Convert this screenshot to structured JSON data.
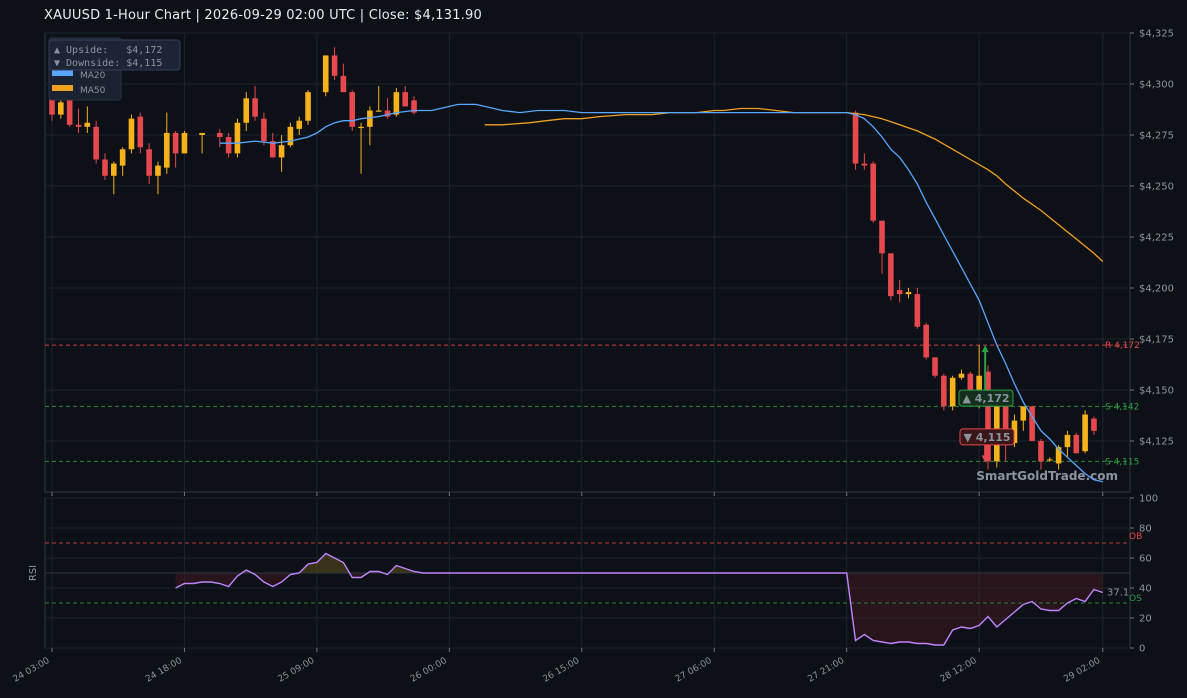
{
  "title": "XAUUSD  1-Hour Chart  |  2026-09-29 02:00 UTC  |  Close: $4,131.90",
  "colors": {
    "background": "#0d1117",
    "up": "#f5b21b",
    "down": "#e5484d",
    "ma20": "#58a6ff",
    "ma50": "#f0a020",
    "resistance": "#e5484d",
    "support": "#2ea043",
    "rsi": "#c084fc"
  },
  "chart_data": [
    {
      "type": "candlestick",
      "title": "XAUUSD  1-Hour Chart",
      "ylim": [
        4100,
        4325
      ],
      "y_ticks": [
        4125,
        4150,
        4175,
        4200,
        4225,
        4250,
        4275,
        4300,
        4325
      ],
      "y_tick_labels": [
        "$4,125",
        "$4,150",
        "$4,175",
        "$4,200",
        "$4,225",
        "$4,250",
        "$4,275",
        "$4,300",
        "$4,325"
      ],
      "x_tick_labels": [
        "24 03:00",
        "24 18:00",
        "25 09:00",
        "26 00:00",
        "26 15:00",
        "27 06:00",
        "27 21:00",
        "28 12:00",
        "29 02:00"
      ],
      "x_tick_index": [
        0,
        15,
        30,
        45,
        60,
        75,
        90,
        105,
        119
      ],
      "legend": {
        "placement": "top-left",
        "entries": [
          {
            "name": "MA20",
            "color": "#58a6ff"
          },
          {
            "name": "MA50",
            "color": "#f0a020"
          }
        ]
      },
      "grid": true,
      "watermark": "SmartGoldTrade.com",
      "candles": [
        {
          "i": 0,
          "o": 4293,
          "h": 4296,
          "l": 4282,
          "c": 4285
        },
        {
          "i": 1,
          "o": 4285,
          "h": 4292,
          "l": 4283,
          "c": 4291
        },
        {
          "i": 2,
          "o": 4292,
          "h": 4294,
          "l": 4279,
          "c": 4280
        },
        {
          "i": 3,
          "o": 4280,
          "h": 4288,
          "l": 4276,
          "c": 4279
        },
        {
          "i": 4,
          "o": 4279,
          "h": 4289,
          "l": 4276,
          "c": 4281
        },
        {
          "i": 5,
          "o": 4279,
          "h": 4282,
          "l": 4261,
          "c": 4263
        },
        {
          "i": 6,
          "o": 4263,
          "h": 4266,
          "l": 4253,
          "c": 4255
        },
        {
          "i": 7,
          "o": 4255,
          "h": 4262,
          "l": 4246,
          "c": 4261
        },
        {
          "i": 8,
          "o": 4260,
          "h": 4269,
          "l": 4255,
          "c": 4268
        },
        {
          "i": 9,
          "o": 4268,
          "h": 4285,
          "l": 4266,
          "c": 4283
        },
        {
          "i": 10,
          "o": 4284,
          "h": 4286,
          "l": 4266,
          "c": 4269
        },
        {
          "i": 11,
          "o": 4268,
          "h": 4271,
          "l": 4251,
          "c": 4255
        },
        {
          "i": 12,
          "o": 4255,
          "h": 4262,
          "l": 4246,
          "c": 4260
        },
        {
          "i": 13,
          "o": 4259,
          "h": 4286,
          "l": 4256,
          "c": 4276
        },
        {
          "i": 14,
          "o": 4276,
          "h": 4277,
          "l": 4259,
          "c": 4266
        },
        {
          "i": 15,
          "o": 4266,
          "h": 4277,
          "l": 4266,
          "c": 4276
        },
        {
          "i": 17,
          "o": 4275,
          "h": 4276,
          "l": 4266,
          "c": 4276
        },
        {
          "i": 19,
          "o": 4276,
          "h": 4278,
          "l": 4269,
          "c": 4274
        },
        {
          "i": 20,
          "o": 4274,
          "h": 4276,
          "l": 4264,
          "c": 4266
        },
        {
          "i": 21,
          "o": 4266,
          "h": 4283,
          "l": 4264,
          "c": 4281
        },
        {
          "i": 22,
          "o": 4281,
          "h": 4296,
          "l": 4277,
          "c": 4293
        },
        {
          "i": 23,
          "o": 4293,
          "h": 4299,
          "l": 4282,
          "c": 4284
        },
        {
          "i": 24,
          "o": 4283,
          "h": 4286,
          "l": 4270,
          "c": 4272
        },
        {
          "i": 25,
          "o": 4272,
          "h": 4276,
          "l": 4264,
          "c": 4264
        },
        {
          "i": 26,
          "o": 4264,
          "h": 4275,
          "l": 4257,
          "c": 4270
        },
        {
          "i": 27,
          "o": 4270,
          "h": 4281,
          "l": 4269,
          "c": 4279
        },
        {
          "i": 28,
          "o": 4278,
          "h": 4284,
          "l": 4275,
          "c": 4282
        },
        {
          "i": 29,
          "o": 4282,
          "h": 4297,
          "l": 4280,
          "c": 4296
        },
        {
          "i": 31,
          "o": 4296,
          "h": 4314,
          "l": 4294,
          "c": 4314
        },
        {
          "i": 32,
          "o": 4314,
          "h": 4318,
          "l": 4302,
          "c": 4304
        },
        {
          "i": 33,
          "o": 4304,
          "h": 4310,
          "l": 4296,
          "c": 4296
        },
        {
          "i": 34,
          "o": 4296,
          "h": 4297,
          "l": 4277,
          "c": 4279
        },
        {
          "i": 35,
          "o": 4279,
          "h": 4281,
          "l": 4256,
          "c": 4279
        },
        {
          "i": 36,
          "o": 4279,
          "h": 4289,
          "l": 4270,
          "c": 4287
        },
        {
          "i": 37,
          "o": 4287,
          "h": 4299,
          "l": 4287,
          "c": 4287
        },
        {
          "i": 38,
          "o": 4287,
          "h": 4293,
          "l": 4283,
          "c": 4284
        },
        {
          "i": 39,
          "o": 4285,
          "h": 4298,
          "l": 4284,
          "c": 4296
        },
        {
          "i": 40,
          "o": 4296,
          "h": 4299,
          "l": 4290,
          "c": 4289
        },
        {
          "i": 41,
          "o": 4292,
          "h": 4294,
          "l": 4285,
          "c": 4286
        },
        {
          "i": 91,
          "o": 4286,
          "h": 4287,
          "l": 4258,
          "c": 4261
        },
        {
          "i": 92,
          "o": 4261,
          "h": 4266,
          "l": 4258,
          "c": 4260
        },
        {
          "i": 93,
          "o": 4261,
          "h": 4262,
          "l": 4232,
          "c": 4233
        },
        {
          "i": 94,
          "o": 4233,
          "h": 4233,
          "l": 4207,
          "c": 4217
        },
        {
          "i": 95,
          "o": 4217,
          "h": 4217,
          "l": 4194,
          "c": 4196
        },
        {
          "i": 96,
          "o": 4199,
          "h": 4204,
          "l": 4193,
          "c": 4197
        },
        {
          "i": 97,
          "o": 4197,
          "h": 4200,
          "l": 4195,
          "c": 4198
        },
        {
          "i": 98,
          "o": 4197,
          "h": 4200,
          "l": 4180,
          "c": 4181
        },
        {
          "i": 99,
          "o": 4182,
          "h": 4183,
          "l": 4165,
          "c": 4166
        },
        {
          "i": 100,
          "o": 4166,
          "h": 4166,
          "l": 4156,
          "c": 4157
        },
        {
          "i": 101,
          "o": 4157,
          "h": 4158,
          "l": 4140,
          "c": 4142
        },
        {
          "i": 102,
          "o": 4142,
          "h": 4157,
          "l": 4140,
          "c": 4156
        },
        {
          "i": 103,
          "o": 4156,
          "h": 4160,
          "l": 4155,
          "c": 4158
        },
        {
          "i": 104,
          "o": 4158,
          "h": 4159,
          "l": 4144,
          "c": 4146
        },
        {
          "i": 105,
          "o": 4146,
          "h": 4172,
          "l": 4141,
          "c": 4157
        },
        {
          "i": 106,
          "o": 4159,
          "h": 4162,
          "l": 4111,
          "c": 4115
        },
        {
          "i": 107,
          "o": 4115,
          "h": 4145,
          "l": 4112,
          "c": 4145
        },
        {
          "i": 108,
          "o": 4143,
          "h": 4144,
          "l": 4115,
          "c": 4124
        },
        {
          "i": 109,
          "o": 4124,
          "h": 4138,
          "l": 4122,
          "c": 4135
        },
        {
          "i": 110,
          "o": 4135,
          "h": 4142,
          "l": 4130,
          "c": 4142
        },
        {
          "i": 111,
          "o": 4142,
          "h": 4142,
          "l": 4125,
          "c": 4125
        },
        {
          "i": 112,
          "o": 4125,
          "h": 4126,
          "l": 4111,
          "c": 4115
        },
        {
          "i": 113,
          "o": 4116,
          "h": 4117,
          "l": 4115,
          "c": 4116
        },
        {
          "i": 114,
          "o": 4114,
          "h": 4123,
          "l": 4111,
          "c": 4122
        },
        {
          "i": 115,
          "o": 4122,
          "h": 4130,
          "l": 4117,
          "c": 4128
        },
        {
          "i": 116,
          "o": 4128,
          "h": 4129,
          "l": 4119,
          "c": 4119
        },
        {
          "i": 117,
          "o": 4120,
          "h": 4140,
          "l": 4119,
          "c": 4138
        },
        {
          "i": 118,
          "o": 4136,
          "h": 4137,
          "l": 4128,
          "c": 4130
        }
      ],
      "ma20": [
        [
          19,
          4271
        ],
        [
          21,
          4271
        ],
        [
          23,
          4272
        ],
        [
          25,
          4271
        ],
        [
          27,
          4272
        ],
        [
          29,
          4274
        ],
        [
          30,
          4276
        ],
        [
          31,
          4279
        ],
        [
          32,
          4281
        ],
        [
          33,
          4282
        ],
        [
          34,
          4282
        ],
        [
          35,
          4283
        ],
        [
          37,
          4284
        ],
        [
          39,
          4286
        ],
        [
          41,
          4287
        ],
        [
          43,
          4287
        ],
        [
          44,
          4288
        ],
        [
          45,
          4289
        ],
        [
          46,
          4290
        ],
        [
          48,
          4290
        ],
        [
          49,
          4289
        ],
        [
          51,
          4287
        ],
        [
          53,
          4286
        ],
        [
          55,
          4287
        ],
        [
          58,
          4287
        ],
        [
          60,
          4286
        ],
        [
          65,
          4286
        ],
        [
          70,
          4286
        ],
        [
          75,
          4286
        ],
        [
          80,
          4286
        ],
        [
          85,
          4286
        ],
        [
          89,
          4286
        ],
        [
          90,
          4286
        ],
        [
          91,
          4285
        ],
        [
          92,
          4283
        ],
        [
          93,
          4279
        ],
        [
          94,
          4274
        ],
        [
          95,
          4268
        ],
        [
          96,
          4264
        ],
        [
          97,
          4258
        ],
        [
          98,
          4251
        ],
        [
          99,
          4242
        ],
        [
          100,
          4234
        ],
        [
          101,
          4226
        ],
        [
          102,
          4218
        ],
        [
          103,
          4210
        ],
        [
          104,
          4202
        ],
        [
          105,
          4194
        ],
        [
          106,
          4183
        ],
        [
          107,
          4172
        ],
        [
          108,
          4163
        ],
        [
          109,
          4153
        ],
        [
          110,
          4144
        ],
        [
          111,
          4137
        ],
        [
          112,
          4130
        ],
        [
          113,
          4126
        ],
        [
          114,
          4121
        ],
        [
          115,
          4117
        ],
        [
          116,
          4113
        ],
        [
          117,
          4109
        ],
        [
          118,
          4106
        ],
        [
          119,
          4105
        ]
      ],
      "ma50": [
        [
          49,
          4280
        ],
        [
          51,
          4280
        ],
        [
          54,
          4281
        ],
        [
          56,
          4282
        ],
        [
          58,
          4283
        ],
        [
          60,
          4283
        ],
        [
          62,
          4284
        ],
        [
          65,
          4285
        ],
        [
          68,
          4285
        ],
        [
          70,
          4286
        ],
        [
          73,
          4286
        ],
        [
          75,
          4287
        ],
        [
          76,
          4287
        ],
        [
          78,
          4288
        ],
        [
          80,
          4288
        ],
        [
          82,
          4287
        ],
        [
          84,
          4286
        ],
        [
          86,
          4286
        ],
        [
          88,
          4286
        ],
        [
          90,
          4286
        ],
        [
          92,
          4285
        ],
        [
          94,
          4283
        ],
        [
          96,
          4280
        ],
        [
          98,
          4277
        ],
        [
          100,
          4273
        ],
        [
          102,
          4268
        ],
        [
          104,
          4263
        ],
        [
          106,
          4258
        ],
        [
          107,
          4255
        ],
        [
          108,
          4251
        ],
        [
          110,
          4244
        ],
        [
          112,
          4238
        ],
        [
          114,
          4231
        ],
        [
          116,
          4224
        ],
        [
          118,
          4217
        ],
        [
          119,
          4213
        ]
      ],
      "levels": [
        {
          "label": "R 4,172",
          "price": 4172,
          "color": "#e5484d"
        },
        {
          "label": "S 4,142",
          "price": 4142,
          "color": "#2ea043"
        },
        {
          "label": "S 4,115",
          "price": 4115,
          "color": "#2ea043"
        }
      ],
      "annotations": {
        "info_box": {
          "upside_label": "▲ Upside:   $4,172",
          "downside_label": "▼ Downside: $4,115"
        },
        "upside_tag": {
          "label": "▲ 4,172",
          "price": 4146,
          "arrow_to": 4172,
          "i": 105
        },
        "downside_tag": {
          "label": "▼ 4,115",
          "price": 4127,
          "arrow_to": 4115,
          "i": 105
        }
      }
    },
    {
      "type": "line",
      "ylabel": "RSI",
      "ylim": [
        0,
        100
      ],
      "y_ticks": [
        0,
        20,
        40,
        60,
        80,
        100
      ],
      "ob_label": "OB",
      "os_label": "OS",
      "ob_level": 70,
      "os_level": 30,
      "last_value_label": "37.1",
      "rsi": [
        [
          14,
          40
        ],
        [
          15,
          43
        ],
        [
          16,
          43
        ],
        [
          17,
          44
        ],
        [
          18,
          44
        ],
        [
          19,
          43
        ],
        [
          20,
          41
        ],
        [
          21,
          48
        ],
        [
          22,
          52
        ],
        [
          23,
          49
        ],
        [
          24,
          44
        ],
        [
          25,
          41
        ],
        [
          26,
          44
        ],
        [
          27,
          49
        ],
        [
          28,
          50
        ],
        [
          29,
          56
        ],
        [
          30,
          57
        ],
        [
          31,
          63
        ],
        [
          32,
          60
        ],
        [
          33,
          57
        ],
        [
          34,
          47
        ],
        [
          35,
          47
        ],
        [
          36,
          51
        ],
        [
          37,
          51
        ],
        [
          38,
          49
        ],
        [
          39,
          55
        ],
        [
          40,
          53
        ],
        [
          41,
          51
        ],
        [
          42,
          50
        ],
        [
          50,
          50
        ],
        [
          60,
          50
        ],
        [
          70,
          50
        ],
        [
          80,
          50
        ],
        [
          89,
          50
        ],
        [
          90,
          50
        ],
        [
          91,
          5
        ],
        [
          92,
          9
        ],
        [
          93,
          5
        ],
        [
          94,
          4
        ],
        [
          95,
          3
        ],
        [
          96,
          4
        ],
        [
          97,
          4
        ],
        [
          98,
          3
        ],
        [
          99,
          3
        ],
        [
          100,
          2
        ],
        [
          101,
          2
        ],
        [
          102,
          12
        ],
        [
          103,
          14
        ],
        [
          104,
          13
        ],
        [
          105,
          15
        ],
        [
          106,
          21
        ],
        [
          107,
          14
        ],
        [
          108,
          19
        ],
        [
          109,
          24
        ],
        [
          110,
          29
        ],
        [
          111,
          31
        ],
        [
          112,
          26
        ],
        [
          113,
          25
        ],
        [
          114,
          25
        ],
        [
          115,
          30
        ],
        [
          116,
          33
        ],
        [
          117,
          31
        ],
        [
          118,
          39
        ],
        [
          119,
          37
        ]
      ]
    }
  ]
}
